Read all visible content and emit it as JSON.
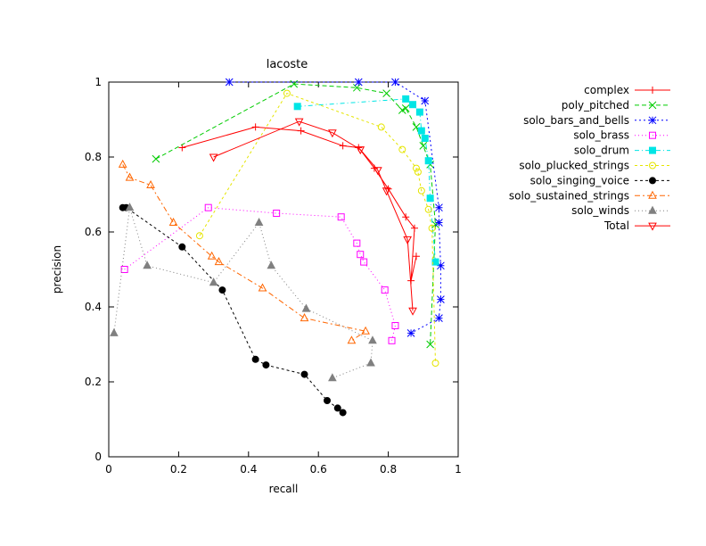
{
  "chart_data": {
    "type": "scatter",
    "title": "lacoste",
    "xlabel": "recall",
    "ylabel": "precision",
    "xlim": [
      0,
      1
    ],
    "ylim": [
      0,
      1
    ],
    "xticks": [
      "0",
      "0.2",
      "0.4",
      "0.6",
      "0.8",
      "1"
    ],
    "yticks": [
      "0",
      "0.2",
      "0.4",
      "0.6",
      "0.8",
      "1"
    ],
    "grid": false,
    "legend_position": "outside-right",
    "series": [
      {
        "name": "complex",
        "color": "#ff0000",
        "marker": "plus",
        "dash": "",
        "points": [
          [
            0.21,
            0.825
          ],
          [
            0.42,
            0.88
          ],
          [
            0.55,
            0.87
          ],
          [
            0.67,
            0.83
          ],
          [
            0.715,
            0.825
          ],
          [
            0.76,
            0.77
          ],
          [
            0.8,
            0.715
          ],
          [
            0.85,
            0.64
          ],
          [
            0.875,
            0.61
          ],
          [
            0.865,
            0.47
          ],
          [
            0.88,
            0.535
          ]
        ]
      },
      {
        "name": "poly_pitched",
        "color": "#00cc00",
        "marker": "cross",
        "dash": "5,3",
        "points": [
          [
            0.135,
            0.795
          ],
          [
            0.53,
            0.995
          ],
          [
            0.71,
            0.985
          ],
          [
            0.795,
            0.97
          ],
          [
            0.84,
            0.925
          ],
          [
            0.85,
            0.93
          ],
          [
            0.88,
            0.88
          ],
          [
            0.9,
            0.83
          ],
          [
            0.92,
            0.78
          ],
          [
            0.935,
            0.62
          ],
          [
            0.92,
            0.3
          ]
        ]
      },
      {
        "name": "solo_bars_and_bells",
        "color": "#0000ff",
        "marker": "star",
        "dash": "2,3",
        "points": [
          [
            0.345,
            1.0
          ],
          [
            0.715,
            1.0
          ],
          [
            0.82,
            1.0
          ],
          [
            0.905,
            0.95
          ],
          [
            0.945,
            0.665
          ],
          [
            0.945,
            0.625
          ],
          [
            0.95,
            0.51
          ],
          [
            0.95,
            0.42
          ],
          [
            0.945,
            0.37
          ],
          [
            0.865,
            0.33
          ]
        ]
      },
      {
        "name": "solo_brass",
        "color": "#ff00ff",
        "marker": "square",
        "dash": "1,3",
        "points": [
          [
            0.045,
            0.5
          ],
          [
            0.285,
            0.665
          ],
          [
            0.48,
            0.65
          ],
          [
            0.665,
            0.64
          ],
          [
            0.71,
            0.57
          ],
          [
            0.72,
            0.54
          ],
          [
            0.73,
            0.52
          ],
          [
            0.79,
            0.445
          ],
          [
            0.82,
            0.35
          ],
          [
            0.81,
            0.31
          ]
        ]
      },
      {
        "name": "solo_drum",
        "color": "#00e5e5",
        "marker": "filledsquare",
        "dash": "5,3,1,3",
        "points": [
          [
            0.54,
            0.935
          ],
          [
            0.85,
            0.955
          ],
          [
            0.87,
            0.94
          ],
          [
            0.89,
            0.92
          ],
          [
            0.895,
            0.87
          ],
          [
            0.905,
            0.85
          ],
          [
            0.915,
            0.79
          ],
          [
            0.92,
            0.69
          ],
          [
            0.935,
            0.52
          ]
        ]
      },
      {
        "name": "solo_plucked_strings",
        "color": "#e5e500",
        "marker": "circle",
        "dash": "3,3",
        "points": [
          [
            0.26,
            0.59
          ],
          [
            0.51,
            0.97
          ],
          [
            0.78,
            0.88
          ],
          [
            0.84,
            0.82
          ],
          [
            0.88,
            0.77
          ],
          [
            0.885,
            0.76
          ],
          [
            0.895,
            0.71
          ],
          [
            0.915,
            0.66
          ],
          [
            0.925,
            0.61
          ],
          [
            0.935,
            0.25
          ]
        ]
      },
      {
        "name": "solo_singing_voice",
        "color": "#000000",
        "marker": "filledcircle",
        "dash": "3,3",
        "points": [
          [
            0.04,
            0.665
          ],
          [
            0.05,
            0.665
          ],
          [
            0.21,
            0.56
          ],
          [
            0.325,
            0.445
          ],
          [
            0.42,
            0.26
          ],
          [
            0.45,
            0.245
          ],
          [
            0.56,
            0.22
          ],
          [
            0.625,
            0.15
          ],
          [
            0.655,
            0.13
          ],
          [
            0.67,
            0.118
          ]
        ]
      },
      {
        "name": "solo_sustained_strings",
        "color": "#ff6600",
        "marker": "triangle",
        "dash": "6,3,2,3",
        "points": [
          [
            0.04,
            0.78
          ],
          [
            0.06,
            0.745
          ],
          [
            0.12,
            0.725
          ],
          [
            0.185,
            0.625
          ],
          [
            0.295,
            0.535
          ],
          [
            0.315,
            0.52
          ],
          [
            0.44,
            0.45
          ],
          [
            0.56,
            0.37
          ],
          [
            0.735,
            0.335
          ],
          [
            0.695,
            0.31
          ]
        ]
      },
      {
        "name": "solo_winds",
        "color": "#808080",
        "marker": "filledtriangle",
        "dash": "1,3",
        "points": [
          [
            0.015,
            0.33
          ],
          [
            0.06,
            0.665
          ],
          [
            0.11,
            0.51
          ],
          [
            0.3,
            0.465
          ],
          [
            0.43,
            0.625
          ],
          [
            0.465,
            0.51
          ],
          [
            0.565,
            0.395
          ],
          [
            0.755,
            0.31
          ],
          [
            0.75,
            0.25
          ],
          [
            0.64,
            0.21
          ]
        ]
      },
      {
        "name": "Total",
        "color": "#ff0000",
        "marker": "invtriangle",
        "dash": "",
        "points": [
          [
            0.3,
            0.8
          ],
          [
            0.545,
            0.895
          ],
          [
            0.64,
            0.865
          ],
          [
            0.72,
            0.82
          ],
          [
            0.77,
            0.765
          ],
          [
            0.795,
            0.71
          ],
          [
            0.855,
            0.58
          ],
          [
            0.87,
            0.39
          ]
        ]
      }
    ]
  }
}
